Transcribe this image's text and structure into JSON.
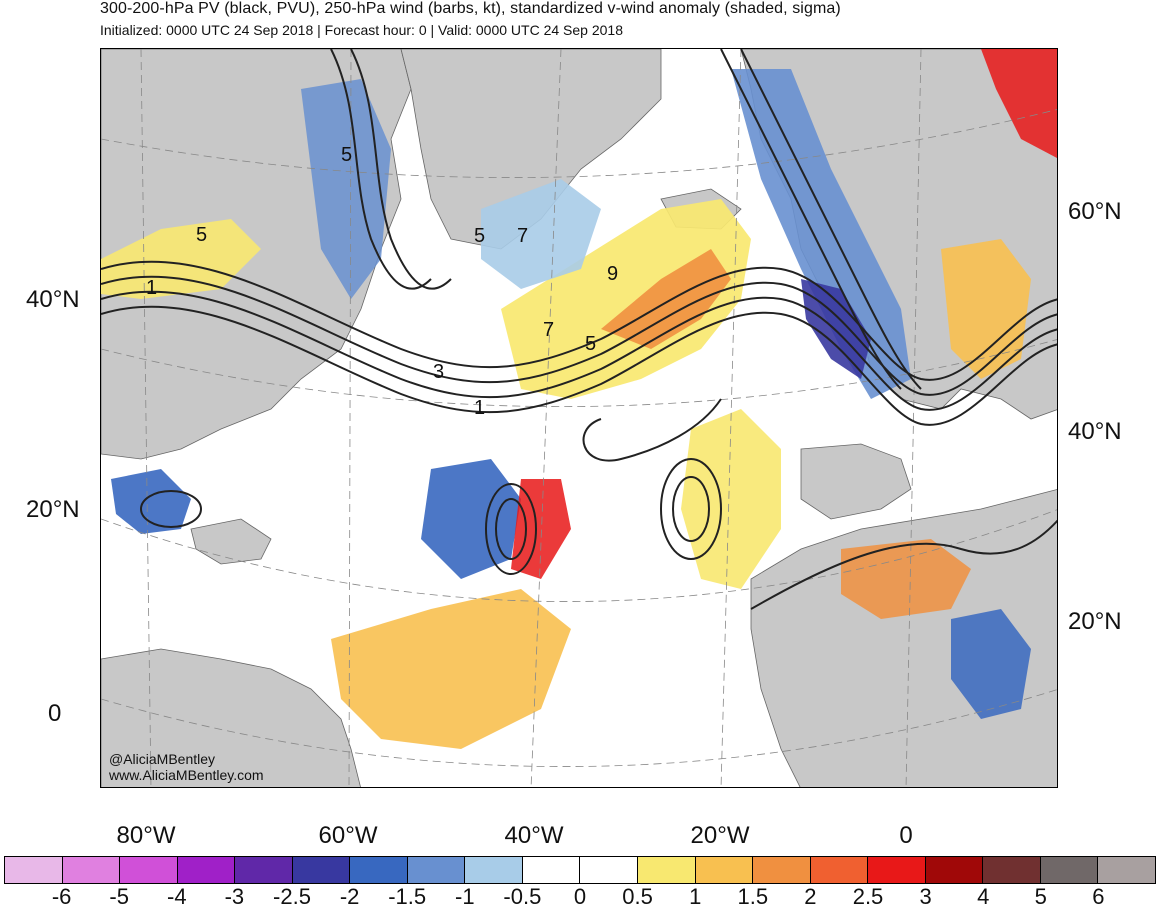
{
  "header": {
    "title": "300-200-hPa PV (black, PVU), 250-hPa wind (barbs, kt), standardized v-wind anomaly (shaded, sigma)",
    "subtitle": "Initialized: 0000 UTC 24 Sep 2018 | Forecast hour: 0 | Valid: 0000 UTC 24 Sep 2018"
  },
  "map": {
    "left_lat_labels": [
      "40°N",
      "20°N",
      "0"
    ],
    "right_lat_labels": [
      "60°N",
      "40°N",
      "20°N"
    ],
    "lon_labels": [
      "80°W",
      "60°W",
      "40°W",
      "20°W",
      "0"
    ],
    "contour_labels": [
      "5",
      "5",
      "1",
      "5",
      "7",
      "9",
      "7",
      "5",
      "3",
      "1"
    ],
    "watermark_handle": "@AliciaMBentley",
    "watermark_site": "www.AliciaMBentley.com",
    "colors": {
      "land": "#c8c8c8",
      "ocean": "#ffffff",
      "contour": "#222222",
      "coast": "#555555"
    }
  },
  "colorbar": {
    "tick_labels": [
      "-6",
      "-5",
      "-4",
      "-3",
      "-2.5",
      "-2",
      "-1.5",
      "-1",
      "-0.5",
      "0",
      "0.5",
      "1",
      "1.5",
      "2",
      "2.5",
      "3",
      "4",
      "5",
      "6"
    ],
    "colors": [
      "#e8b8e8",
      "#e080e0",
      "#d050d8",
      "#a020c8",
      "#6028a8",
      "#3838a0",
      "#3868c0",
      "#6890d0",
      "#a8cce8",
      "#ffffff",
      "#ffffff",
      "#f8e870",
      "#f8c050",
      "#f09040",
      "#f06030",
      "#e81818",
      "#a00808",
      "#703030",
      "#706868",
      "#a8a0a0"
    ]
  }
}
